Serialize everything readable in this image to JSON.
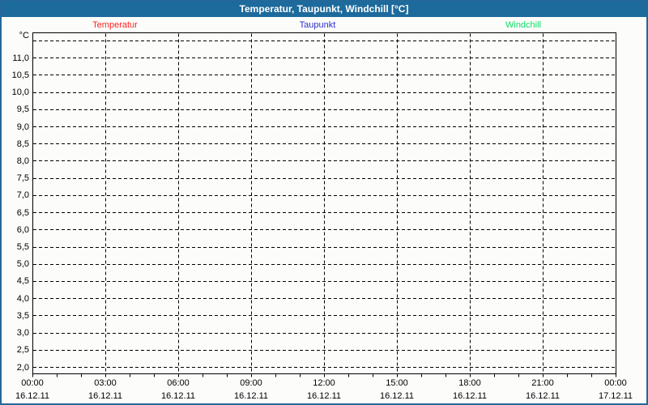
{
  "window": {
    "title": "Temperatur, Taupunkt, Windchill [°C]"
  },
  "colors": {
    "titlebar_bg": "#1d6a9c",
    "frame_border": "#24689a",
    "background": "#fcfdfb",
    "grid": "#000000",
    "text": "#000000"
  },
  "chart_data": {
    "type": "line",
    "title": "Temperatur, Taupunkt, Windchill [°C]",
    "legend_position": "top",
    "grid": true,
    "series": [
      {
        "name": "Temperatur",
        "color": "#ff2222",
        "values": []
      },
      {
        "name": "Taupunkt",
        "color": "#2d2dcc",
        "values": []
      },
      {
        "name": "Windchill",
        "color": "#0ddd66",
        "values": []
      }
    ],
    "y_axis": {
      "unit": "°C",
      "tick_labels": [
        "11,0",
        "10,5",
        "10,0",
        "9,5",
        "9,0",
        "8,5",
        "8,0",
        "7,5",
        "7,0",
        "6,5",
        "6,0",
        "5,5",
        "5,0",
        "4,5",
        "4,0",
        "3,5",
        "3,0",
        "2,5",
        "2,0"
      ],
      "tick_values": [
        11.0,
        10.5,
        10.0,
        9.5,
        9.0,
        8.5,
        8.0,
        7.5,
        7.0,
        6.5,
        6.0,
        5.5,
        5.0,
        4.5,
        4.0,
        3.5,
        3.0,
        2.5,
        2.0
      ],
      "gridline_values": [
        11.5,
        11.0,
        10.5,
        10.0,
        9.5,
        9.0,
        8.5,
        8.0,
        7.5,
        7.0,
        6.5,
        6.0,
        5.5,
        5.0,
        4.5,
        4.0,
        3.5,
        3.0,
        2.5,
        2.0
      ],
      "ylim": [
        1.8,
        11.75
      ]
    },
    "x_axis": {
      "hours_total": 24,
      "minor_tick_every_hours": 1,
      "gridline_hours": [
        3,
        6,
        9,
        12,
        15,
        18,
        21
      ],
      "tick_hours": [
        0,
        3,
        6,
        9,
        12,
        15,
        18,
        21,
        24
      ],
      "time_labels": [
        "00:00",
        "03:00",
        "06:00",
        "09:00",
        "12:00",
        "15:00",
        "18:00",
        "21:00",
        "00:00"
      ],
      "date_labels": [
        "16.12.11",
        "16.12.11",
        "16.12.11",
        "16.12.11",
        "16.12.11",
        "16.12.11",
        "16.12.11",
        "16.12.11",
        "17.12.11"
      ]
    }
  }
}
